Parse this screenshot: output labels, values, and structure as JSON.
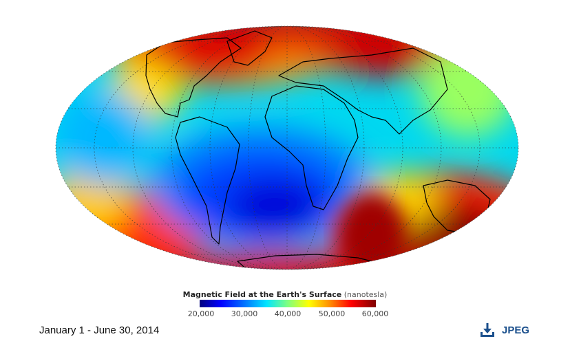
{
  "legend": {
    "title": "Magnetic Field at the Earth's Surface",
    "unit": "(nanotesla)",
    "ticks": [
      "20,000",
      "30,000",
      "40,000",
      "50,000",
      "60,000"
    ],
    "colors": [
      "#00007f",
      "#0000ff",
      "#0066ff",
      "#00e5ff",
      "#7fff7f",
      "#ffff00",
      "#ff8c00",
      "#ff0000",
      "#7f0000"
    ]
  },
  "caption": {
    "date_range": "January 1 - June 30, 2014"
  },
  "download": {
    "label": "JPEG",
    "icon": "download-icon",
    "color": "#1a4f8c"
  },
  "map": {
    "projection": "Mollweide",
    "graticule": "dotted",
    "field_min": 20000,
    "field_max": 60000
  }
}
